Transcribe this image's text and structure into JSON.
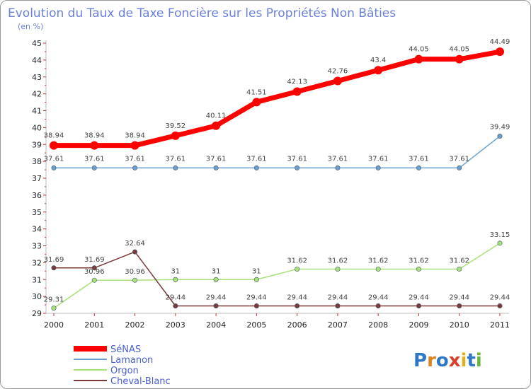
{
  "chart_data": {
    "type": "line",
    "title": "Evolution du Taux de Taxe Foncière sur les Propriétés Non Bâties",
    "subtitle": "(en %)",
    "xlabel": "",
    "ylabel": "(en %)",
    "x": [
      "2000",
      "2001",
      "2002",
      "2003",
      "2004",
      "2005",
      "2006",
      "2007",
      "2008",
      "2009",
      "2010",
      "2011"
    ],
    "ylim": [
      29,
      45
    ],
    "yticks": [
      "29",
      "30",
      "31",
      "32",
      "33",
      "34",
      "35",
      "36",
      "37",
      "38",
      "39",
      "40",
      "41",
      "42",
      "43",
      "44",
      "45"
    ],
    "grid": false,
    "legend_position": "bottom-left",
    "series": [
      {
        "name": "SéNAS",
        "color": "#ff0000",
        "values": [
          38.94,
          38.94,
          38.94,
          39.52,
          40.11,
          41.51,
          42.13,
          42.76,
          43.4,
          44.05,
          44.05,
          44.49
        ],
        "labels": [
          "38.94",
          "38.94",
          "38.94",
          "39.52",
          "40.11",
          "41.51",
          "42.13",
          "42.76",
          "43.4",
          "44.05",
          "44.05",
          "44.49"
        ]
      },
      {
        "name": "Lamanon",
        "color": "#6a9fd0",
        "values": [
          37.61,
          37.61,
          37.61,
          37.61,
          37.61,
          37.61,
          37.61,
          37.61,
          37.61,
          37.61,
          37.61,
          39.49
        ],
        "labels": [
          "37.61",
          "37.61",
          "37.61",
          "37.61",
          "37.61",
          "37.61",
          "37.61",
          "37.61",
          "37.61",
          "37.61",
          "37.61",
          "39.49"
        ]
      },
      {
        "name": "Orgon",
        "color": "#a8e07a",
        "values": [
          29.31,
          30.96,
          30.96,
          31,
          31,
          31,
          31.62,
          31.62,
          31.62,
          31.62,
          31.62,
          33.15
        ],
        "labels": [
          "29.31",
          "30.96",
          "30.96",
          "31",
          "31",
          "31",
          "31.62",
          "31.62",
          "31.62",
          "31.62",
          "31.62",
          "33.15"
        ]
      },
      {
        "name": "Cheval-Blanc",
        "color": "#7a3a3a",
        "values": [
          31.69,
          31.69,
          32.64,
          29.44,
          29.44,
          29.44,
          29.44,
          29.44,
          29.44,
          29.44,
          29.44,
          29.44
        ],
        "labels": [
          "31.69",
          "31.69",
          "32.64",
          "29.44",
          "29.44",
          "29.44",
          "29.44",
          "29.44",
          "29.44",
          "29.44",
          "29.44",
          "29.44"
        ]
      }
    ]
  },
  "logo": {
    "text": "Proxiti"
  }
}
